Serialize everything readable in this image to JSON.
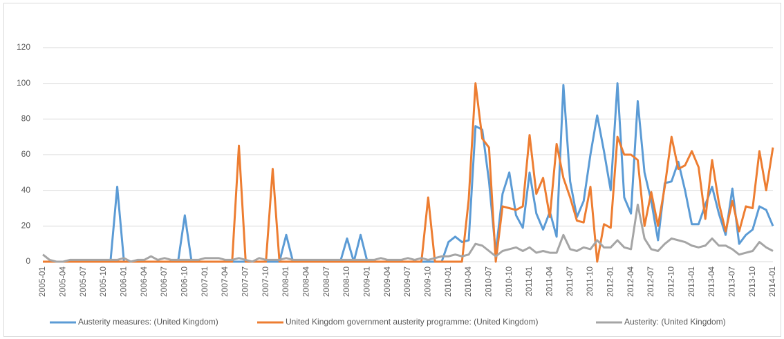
{
  "chart_data": {
    "type": "line",
    "categories": [
      "2005-01",
      null,
      null,
      "2005-04",
      null,
      null,
      "2005-07",
      null,
      null,
      "2005-10",
      null,
      null,
      "2006-01",
      null,
      null,
      "2006-04",
      null,
      null,
      "2006-07",
      null,
      null,
      "2006-10",
      null,
      null,
      "2007-01",
      null,
      null,
      "2007-04",
      null,
      null,
      "2007-07",
      null,
      null,
      "2007-10",
      null,
      null,
      "2008-01",
      null,
      null,
      "2008-04",
      null,
      null,
      "2008-07",
      null,
      null,
      "2008-10",
      null,
      null,
      "2009-01",
      null,
      null,
      "2009-04",
      null,
      null,
      "2009-07",
      null,
      null,
      "2009-10",
      null,
      null,
      "2010-01",
      null,
      null,
      "2010-04",
      null,
      null,
      "2010-07",
      null,
      null,
      "2010-10",
      null,
      null,
      "2011-01",
      null,
      null,
      "2011-04",
      null,
      null,
      "2011-07",
      null,
      null,
      "2011-10",
      null,
      null,
      "2012-01",
      null,
      null,
      "2012-04",
      null,
      null,
      "2012-07",
      null,
      null,
      "2012-10",
      null,
      null,
      "2013-01",
      null,
      null,
      "2013-04",
      null,
      null,
      "2013-07",
      null,
      null,
      "2013-10",
      null,
      null,
      "2014-01"
    ],
    "series": [
      {
        "name": "Austerity measures: (United Kingdom)",
        "color": "#5b9bd5",
        "values": [
          0,
          0,
          0,
          0,
          0,
          0,
          0,
          0,
          0,
          0,
          0,
          42,
          0,
          0,
          0,
          0,
          0,
          0,
          0,
          0,
          0,
          26,
          0,
          0,
          0,
          0,
          0,
          0,
          0,
          0,
          0,
          0,
          0,
          0,
          0,
          0,
          15,
          0,
          0,
          0,
          0,
          0,
          0,
          0,
          0,
          13,
          0,
          15,
          0,
          0,
          0,
          0,
          0,
          0,
          0,
          0,
          0,
          0,
          0,
          0,
          11,
          14,
          11,
          12,
          76,
          74,
          45,
          5,
          38,
          50,
          26,
          19,
          50,
          27,
          18,
          28,
          14,
          99,
          45,
          25,
          34,
          60,
          82,
          62,
          40,
          100,
          36,
          27,
          90,
          50,
          34,
          12,
          44,
          45,
          56,
          40,
          21,
          21,
          32,
          42,
          27,
          15,
          41,
          10,
          15,
          18,
          31,
          29,
          20
        ]
      },
      {
        "name": "United Kingdom government austerity programme: (United Kingdom)",
        "color": "#ed7d31",
        "values": [
          0,
          0,
          0,
          0,
          0,
          0,
          0,
          0,
          0,
          0,
          0,
          0,
          0,
          0,
          0,
          0,
          0,
          0,
          0,
          0,
          0,
          0,
          0,
          0,
          0,
          0,
          0,
          0,
          0,
          65,
          0,
          0,
          0,
          0,
          52,
          0,
          0,
          0,
          0,
          0,
          0,
          0,
          0,
          0,
          0,
          0,
          0,
          0,
          0,
          0,
          0,
          0,
          0,
          0,
          0,
          0,
          0,
          36,
          0,
          0,
          0,
          0,
          0,
          35,
          100,
          69,
          64,
          0,
          31,
          30,
          29,
          31,
          71,
          38,
          47,
          25,
          66,
          47,
          36,
          23,
          22,
          42,
          0,
          21,
          19,
          70,
          60,
          60,
          57,
          20,
          39,
          20,
          42,
          70,
          52,
          54,
          62,
          53,
          24,
          57,
          33,
          17,
          34,
          17,
          31,
          30,
          62,
          40,
          64
        ]
      },
      {
        "name": "Austerity: (United Kingdom)",
        "color": "#a5a5a5",
        "values": [
          4,
          1,
          0,
          0,
          1,
          1,
          1,
          1,
          1,
          1,
          1,
          1,
          2,
          0,
          1,
          1,
          3,
          1,
          2,
          1,
          1,
          1,
          1,
          1,
          2,
          2,
          2,
          1,
          1,
          2,
          1,
          0,
          2,
          1,
          1,
          1,
          2,
          1,
          1,
          1,
          1,
          1,
          1,
          1,
          1,
          1,
          1,
          1,
          1,
          1,
          2,
          1,
          1,
          1,
          2,
          1,
          2,
          1,
          2,
          3,
          3,
          4,
          3,
          4,
          10,
          9,
          6,
          3,
          6,
          7,
          8,
          6,
          8,
          5,
          6,
          5,
          5,
          15,
          7,
          6,
          8,
          7,
          12,
          8,
          8,
          12,
          8,
          7,
          32,
          13,
          7,
          6,
          10,
          13,
          12,
          11,
          9,
          8,
          9,
          13,
          9,
          9,
          7,
          4,
          5,
          6,
          11,
          8,
          6
        ]
      }
    ],
    "ylim": [
      0,
      120
    ],
    "yticks": [
      0,
      20,
      40,
      60,
      80,
      100,
      120
    ],
    "grid": true,
    "legend": "bottom"
  }
}
